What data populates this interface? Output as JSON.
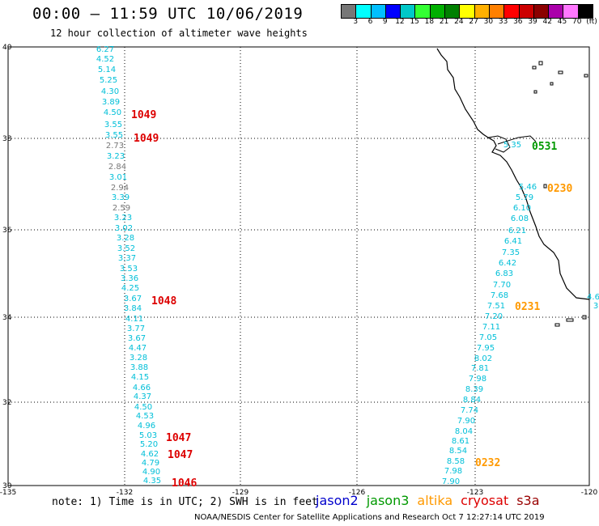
{
  "title": "00:00 – 11:59 UTC 10/06/2019",
  "subtitle": "12 hour collection of altimeter wave heights",
  "scale": {
    "unit": "(ft)",
    "colors": [
      "#777777",
      "#00ffff",
      "#00bfff",
      "#0000ff",
      "#00c8c8",
      "#33ff33",
      "#00b000",
      "#008000",
      "#ffff00",
      "#ffb000",
      "#ff8000",
      "#ff0000",
      "#cc0000",
      "#8b0000",
      "#aa00aa",
      "#ff77ff",
      "#000000"
    ],
    "labels": [
      "3",
      "6",
      "9",
      "12",
      "15",
      "18",
      "21",
      "24",
      "27",
      "30",
      "33",
      "36",
      "39",
      "42",
      "45",
      "70"
    ]
  },
  "axes": {
    "lon_labels": [
      "-135",
      "-132",
      "-129",
      "-126",
      "-123",
      "-120"
    ],
    "lat_labels": [
      "40",
      "38",
      "36",
      "34",
      "32",
      "30"
    ]
  },
  "note": "note:  1) Time is in UTC;  2) SWH is in feet",
  "satellites": [
    {
      "name": "jason2",
      "color": "#0000cc"
    },
    {
      "name": "jason3",
      "color": "#009900"
    },
    {
      "name": "altika",
      "color": "#ff9900"
    },
    {
      "name": "cryosat",
      "color": "#dd0000"
    },
    {
      "name": "s3a",
      "color": "#990000"
    }
  ],
  "footer": "NOAA/NESDIS Center for Satellite Applications and Research    Oct  7 12:27:14 UTC 2019",
  "west_track": [
    {
      "v": "6.27",
      "c": "#00bfd8"
    },
    {
      "v": "4.52",
      "c": "#00bfd8"
    },
    {
      "v": "5.14",
      "c": "#00bfd8"
    },
    {
      "v": "5.25",
      "c": "#00bfd8"
    },
    {
      "v": "4.30",
      "c": "#00bfd8"
    },
    {
      "v": "3.89",
      "c": "#00bfd8"
    },
    {
      "v": "4.50",
      "c": "#00bfd8"
    },
    {
      "v": "3.55",
      "c": "#00bfd8"
    },
    {
      "v": "3.55",
      "c": "#00bfd8"
    },
    {
      "v": "2.73",
      "c": "#777777"
    },
    {
      "v": "3.23",
      "c": "#00bfd8"
    },
    {
      "v": "2.84",
      "c": "#777777"
    },
    {
      "v": "3.01",
      "c": "#00bfd8"
    },
    {
      "v": "2.94",
      "c": "#777777"
    },
    {
      "v": "3.39",
      "c": "#00bfd8"
    },
    {
      "v": "2.59",
      "c": "#777777"
    },
    {
      "v": "3.23",
      "c": "#00bfd8"
    },
    {
      "v": "3.02",
      "c": "#00bfd8"
    },
    {
      "v": "3.28",
      "c": "#00bfd8"
    },
    {
      "v": "3.52",
      "c": "#00bfd8"
    },
    {
      "v": "3.37",
      "c": "#00bfd8"
    },
    {
      "v": "3.53",
      "c": "#00bfd8"
    },
    {
      "v": "3.36",
      "c": "#00bfd8"
    },
    {
      "v": "4.25",
      "c": "#00bfd8"
    },
    {
      "v": "3.67",
      "c": "#00bfd8"
    },
    {
      "v": "3.84",
      "c": "#00bfd8"
    },
    {
      "v": "4.11",
      "c": "#00bfd8"
    },
    {
      "v": "3.77",
      "c": "#00bfd8"
    },
    {
      "v": "3.67",
      "c": "#00bfd8"
    },
    {
      "v": "4.47",
      "c": "#00bfd8"
    },
    {
      "v": "3.28",
      "c": "#00bfd8"
    },
    {
      "v": "3.88",
      "c": "#00bfd8"
    },
    {
      "v": "4.15",
      "c": "#00bfd8"
    },
    {
      "v": "4.66",
      "c": "#00bfd8"
    },
    {
      "v": "4.37",
      "c": "#00bfd8"
    },
    {
      "v": "4.50",
      "c": "#00bfd8"
    },
    {
      "v": "4.53",
      "c": "#00bfd8"
    },
    {
      "v": "4.96",
      "c": "#00bfd8"
    },
    {
      "v": "5.03",
      "c": "#00bfd8"
    },
    {
      "v": "5.20",
      "c": "#00bfd8"
    },
    {
      "v": "4.62",
      "c": "#00bfd8"
    },
    {
      "v": "4.79",
      "c": "#00bfd8"
    },
    {
      "v": "4.90",
      "c": "#00bfd8"
    },
    {
      "v": "4.35",
      "c": "#00bfd8"
    }
  ],
  "east_track": [
    {
      "v": "5.35",
      "c": "#00bfd8"
    },
    {
      "v": "5.46",
      "c": "#00bfd8"
    },
    {
      "v": "5.79",
      "c": "#00bfd8"
    },
    {
      "v": "6.10",
      "c": "#00bfd8"
    },
    {
      "v": "6.08",
      "c": "#00bfd8"
    },
    {
      "v": "6.21",
      "c": "#00bfd8"
    },
    {
      "v": "6.41",
      "c": "#00bfd8"
    },
    {
      "v": "7.35",
      "c": "#00bfd8"
    },
    {
      "v": "6.42",
      "c": "#00bfd8"
    },
    {
      "v": "6.83",
      "c": "#00bfd8"
    },
    {
      "v": "7.70",
      "c": "#00bfd8"
    },
    {
      "v": "7.68",
      "c": "#00bfd8"
    },
    {
      "v": "7.51",
      "c": "#00bfd8"
    },
    {
      "v": "7.20",
      "c": "#00bfd8"
    },
    {
      "v": "7.11",
      "c": "#00bfd8"
    },
    {
      "v": "7.05",
      "c": "#00bfd8"
    },
    {
      "v": "7.95",
      "c": "#00bfd8"
    },
    {
      "v": "8.02",
      "c": "#00bfd8"
    },
    {
      "v": "7.81",
      "c": "#00bfd8"
    },
    {
      "v": "7.98",
      "c": "#00bfd8"
    },
    {
      "v": "8.39",
      "c": "#00bfd8"
    },
    {
      "v": "8.84",
      "c": "#00bfd8"
    },
    {
      "v": "7.74",
      "c": "#00bfd8"
    },
    {
      "v": "7.90",
      "c": "#00bfd8"
    },
    {
      "v": "8.04",
      "c": "#00bfd8"
    },
    {
      "v": "8.61",
      "c": "#00bfd8"
    },
    {
      "v": "8.54",
      "c": "#00bfd8"
    },
    {
      "v": "8.58",
      "c": "#00bfd8"
    },
    {
      "v": "7.98",
      "c": "#00bfd8"
    },
    {
      "v": "7.90",
      "c": "#00bfd8"
    }
  ],
  "edge_values": [
    {
      "v": "4.6",
      "c": "#00bfd8"
    },
    {
      "v": "3",
      "c": "#00bfd8"
    }
  ],
  "time_labels": [
    {
      "t": "1049",
      "c": "#dd0000"
    },
    {
      "t": "1049",
      "c": "#dd0000"
    },
    {
      "t": "1048",
      "c": "#dd0000"
    },
    {
      "t": "1047",
      "c": "#dd0000"
    },
    {
      "t": "1047",
      "c": "#dd0000"
    },
    {
      "t": "1046",
      "c": "#dd0000"
    },
    {
      "t": "0531",
      "c": "#009900"
    },
    {
      "t": "0230",
      "c": "#ff9900"
    },
    {
      "t": "0231",
      "c": "#ff9900"
    },
    {
      "t": "0232",
      "c": "#ff9900"
    }
  ]
}
